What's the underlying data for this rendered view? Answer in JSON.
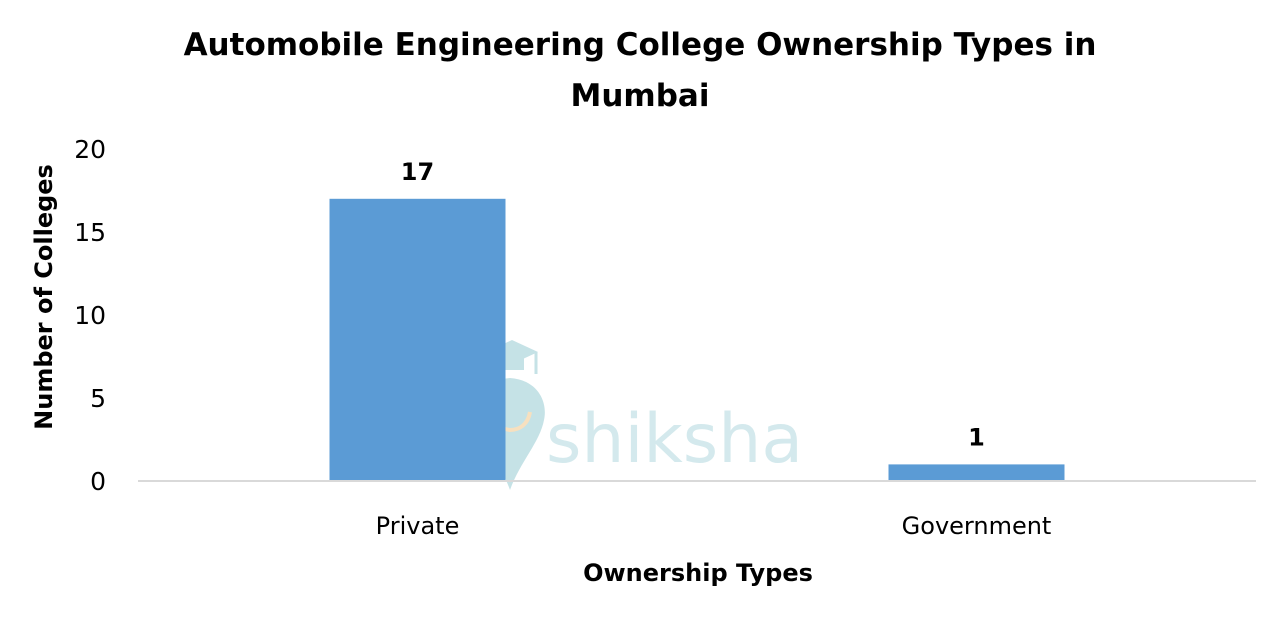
{
  "colors": {
    "bar": "#5b9bd5",
    "axis_line": "#d9d9d9",
    "watermark": "#b7dbe0"
  },
  "watermark": {
    "text": "shiksha",
    "icon": "graduation-cap-pin-icon"
  },
  "chart_data": {
    "type": "bar",
    "title_lines": [
      "Automobile Engineering College Ownership Types in",
      "Mumbai"
    ],
    "xlabel": "Ownership Types",
    "ylabel": "Number of Colleges",
    "categories": [
      "Private",
      "Government"
    ],
    "values": [
      17,
      1
    ],
    "data_labels": [
      "17",
      "1"
    ],
    "ylim": [
      0,
      20
    ],
    "yticks": [
      "0",
      "5",
      "10",
      "15",
      "20"
    ],
    "grid": false,
    "legend": "none"
  }
}
